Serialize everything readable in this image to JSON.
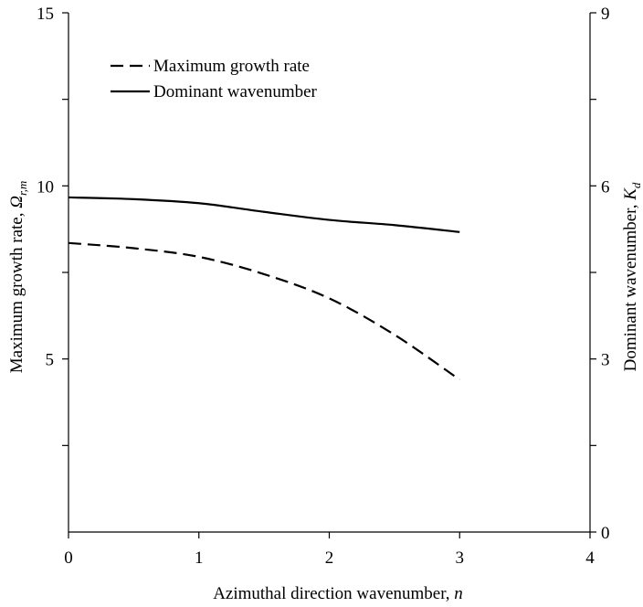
{
  "chart_data": {
    "type": "line",
    "xlabel": "Azimuthal direction wavenumber, ",
    "xlabel_var": "n",
    "ylabel": "Maximum growth rate, ",
    "ylabel_var": "Ω",
    "ylabel_sub": "r,m",
    "y2label": "Dominant wavenumber, ",
    "y2label_var": "K",
    "y2label_sub": "d",
    "xlim": [
      0,
      4
    ],
    "ylim": [
      0,
      15
    ],
    "y2lim": [
      0,
      9
    ],
    "x_ticks": [
      0,
      1,
      2,
      3,
      4
    ],
    "y_tick_labels": [
      5,
      10,
      15
    ],
    "y_minor_ticks": [
      2.5,
      7.5,
      12.5
    ],
    "y2_ticks": [
      0,
      3,
      6,
      9
    ],
    "y2_minor_ticks": [
      1.5,
      4.5,
      7.5
    ],
    "legend_position": "top-left",
    "series": [
      {
        "name": "Maximum growth rate",
        "axis": "left",
        "style": "dashed",
        "x": [
          0,
          0.5,
          1,
          1.5,
          2,
          2.5,
          3
        ],
        "y": [
          8.35,
          8.2,
          7.95,
          7.45,
          6.75,
          5.7,
          4.4
        ]
      },
      {
        "name": "Dominant wavenumber",
        "axis": "right",
        "style": "solid",
        "x": [
          0,
          0.5,
          1,
          1.5,
          2,
          2.5,
          3
        ],
        "y": [
          5.8,
          5.77,
          5.7,
          5.55,
          5.41,
          5.32,
          5.2
        ]
      }
    ]
  }
}
